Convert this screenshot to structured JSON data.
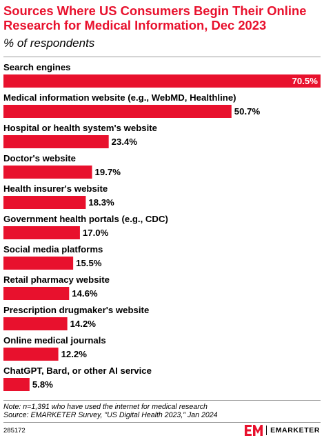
{
  "header": {
    "title": "Sources Where US Consumers Begin Their Online Research for Medical Information, Dec 2023",
    "subtitle": "% of respondents"
  },
  "chart_data": {
    "type": "bar",
    "orientation": "horizontal",
    "categories": [
      "Search engines",
      "Medical information website (e.g., WebMD, Healthline)",
      "Hospital or health system's website",
      "Doctor's website",
      "Health insurer's website",
      "Government health portals (e.g., CDC)",
      "Social media platforms",
      "Retail pharmacy website",
      "Prescription drugmaker's website",
      "Online medical journals",
      "ChatGPT, Bard, or other AI service"
    ],
    "values": [
      70.5,
      50.7,
      23.4,
      19.7,
      18.3,
      17.0,
      15.5,
      14.6,
      14.2,
      12.2,
      5.8
    ],
    "value_labels": [
      "70.5%",
      "50.7%",
      "23.4%",
      "19.7%",
      "18.3%",
      "17.0%",
      "15.5%",
      "14.6%",
      "14.2%",
      "12.2%",
      "5.8%"
    ],
    "bar_color": "#e8112d",
    "xlim": [
      0,
      70.5
    ]
  },
  "footer": {
    "note": "Note: n=1,391 who have used the internet for medical research",
    "source": "Source: EMARKETER Survey, \"US Digital Health 2023,\" Jan 2024",
    "chart_id": "285172",
    "brand": "EMARKETER",
    "brand_color": "#e8112d"
  }
}
